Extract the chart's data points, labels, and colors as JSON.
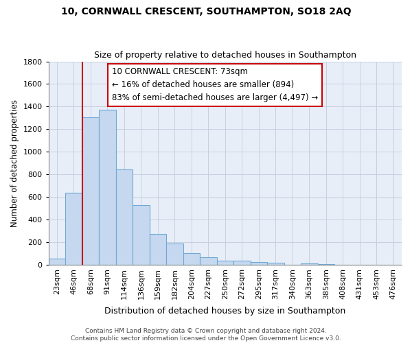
{
  "title": "10, CORNWALL CRESCENT, SOUTHAMPTON, SO18 2AQ",
  "subtitle": "Size of property relative to detached houses in Southampton",
  "xlabel": "Distribution of detached houses by size in Southampton",
  "ylabel": "Number of detached properties",
  "categories": [
    "23sqm",
    "46sqm",
    "68sqm",
    "91sqm",
    "114sqm",
    "136sqm",
    "159sqm",
    "182sqm",
    "204sqm",
    "227sqm",
    "250sqm",
    "272sqm",
    "295sqm",
    "317sqm",
    "340sqm",
    "363sqm",
    "385sqm",
    "408sqm",
    "431sqm",
    "453sqm",
    "476sqm"
  ],
  "values": [
    55,
    635,
    1305,
    1375,
    845,
    530,
    275,
    185,
    105,
    65,
    35,
    35,
    25,
    15,
    0,
    10,
    5,
    0,
    0,
    0,
    0
  ],
  "bar_color": "#c5d8f0",
  "bar_edge_color": "#6fa8d4",
  "vline_x": 2.0,
  "vline_color": "#cc0000",
  "annotation_line1": "10 CORNWALL CRESCENT: 73sqm",
  "annotation_line2": "← 16% of detached houses are smaller (894)",
  "annotation_line3": "83% of semi-detached houses are larger (4,497) →",
  "annotation_box_color": "#cc0000",
  "annotation_box_fill": "#ffffff",
  "ylim": [
    0,
    1800
  ],
  "yticks": [
    0,
    200,
    400,
    600,
    800,
    1000,
    1200,
    1400,
    1600,
    1800
  ],
  "grid_color": "#c8d0e0",
  "background_color": "#e8eef8",
  "footer_line1": "Contains HM Land Registry data © Crown copyright and database right 2024.",
  "footer_line2": "Contains public sector information licensed under the Open Government Licence v3.0.",
  "title_fontsize": 10,
  "subtitle_fontsize": 9,
  "xlabel_fontsize": 9,
  "ylabel_fontsize": 8.5,
  "tick_fontsize": 8,
  "footer_fontsize": 6.5,
  "annotation_fontsize": 8.5
}
